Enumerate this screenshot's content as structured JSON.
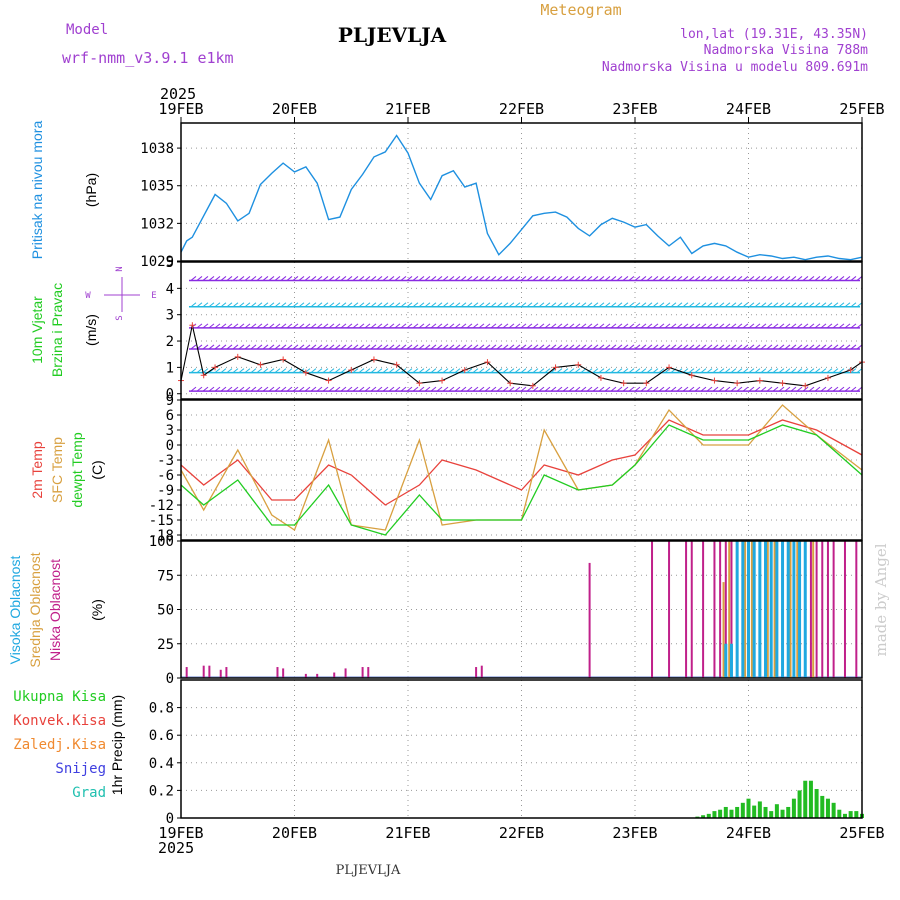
{
  "header": {
    "model_label": "Model",
    "model_name": "wrf-nmm_v3.9.1 e1km",
    "station": "PLJEVLJA",
    "title": "Meteogram",
    "coords": "lon,lat (19.31E, 43.35N)",
    "elevation": "Nadmorska Visina 788m",
    "model_elevation": "Nadmorska Visina u modelu 809.691m"
  },
  "footer": {
    "year": "2025",
    "station": "PLJEVLJA"
  },
  "watermark": "made by Angel",
  "colors": {
    "pressure": "#1e90e0",
    "temp2m": "#e8423c",
    "sfc": "#d8a040",
    "dew": "#22cc22",
    "cloud_high": "#20a8e0",
    "cloud_mid": "#d8a040",
    "cloud_low": "#c0208a",
    "precip_total": "#22bb22",
    "accent_purple": "#a040d0"
  },
  "chart_data": [
    {
      "type": "line",
      "title": "",
      "ylabel": [
        "Pritisak na nivou mora",
        "(hPa)"
      ],
      "ylim": [
        1029,
        1040
      ],
      "yticks": [
        "1038",
        "1035",
        "1032",
        "1029"
      ],
      "grid": true,
      "x_ticks": [
        "19FEB",
        "20FEB",
        "21FEB",
        "22FEB",
        "23FEB",
        "24FEB",
        "25FEB"
      ],
      "series": [
        {
          "x": [
            0,
            0.05,
            0.1,
            0.2,
            0.3,
            0.4,
            0.5,
            0.6,
            0.7,
            0.8,
            0.9,
            1.0,
            1.1,
            1.2,
            1.3,
            1.4,
            1.5,
            1.6,
            1.7,
            1.8,
            1.9,
            2.0,
            2.1,
            2.2,
            2.3,
            2.4,
            2.5,
            2.6,
            2.7,
            2.8,
            2.9,
            3.0,
            3.1,
            3.2,
            3.3,
            3.4,
            3.5,
            3.6,
            3.7,
            3.8,
            3.9,
            4.0,
            4.1,
            4.2,
            4.3,
            4.4,
            4.5,
            4.6,
            4.7,
            4.8,
            4.9,
            5.0,
            5.1,
            5.2,
            5.3,
            5.4,
            5.5,
            5.6,
            5.7,
            5.8,
            5.9,
            6.0
          ],
          "values": [
            1029.7,
            1030.6,
            1030.9,
            1032.6,
            1034.3,
            1033.6,
            1032.2,
            1032.8,
            1035.1,
            1036.0,
            1036.8,
            1036.1,
            1036.5,
            1035.2,
            1032.3,
            1032.5,
            1034.7,
            1035.9,
            1037.3,
            1037.7,
            1039.0,
            1037.6,
            1035.2,
            1033.9,
            1035.8,
            1036.2,
            1034.9,
            1035.2,
            1031.2,
            1029.5,
            1030.4,
            1031.5,
            1032.6,
            1032.8,
            1032.9,
            1032.5,
            1031.6,
            1031.0,
            1031.9,
            1032.4,
            1032.1,
            1031.7,
            1031.9,
            1031.0,
            1030.2,
            1030.9,
            1029.6,
            1030.2,
            1030.4,
            1030.2,
            1029.7,
            1029.3,
            1029.5,
            1029.4,
            1029.2,
            1029.3,
            1029.1,
            1029.3,
            1029.4,
            1029.2,
            1029.1,
            1029.3
          ]
        }
      ]
    },
    {
      "type": "line",
      "title": "",
      "ylabel": [
        "10m Vjetar",
        "Brzina i Pravac",
        "(m/s)"
      ],
      "ylim": [
        -0.2,
        5
      ],
      "yticks": [
        "5",
        "4",
        "3",
        "2",
        "1",
        "0"
      ],
      "compass": [
        "N",
        "W",
        "E",
        "S"
      ],
      "grid": true,
      "series": [
        {
          "x": [
            0,
            0.1,
            0.2,
            0.3,
            0.5,
            0.7,
            0.9,
            1.1,
            1.3,
            1.5,
            1.7,
            1.9,
            2.1,
            2.3,
            2.5,
            2.7,
            2.9,
            3.1,
            3.3,
            3.5,
            3.7,
            3.9,
            4.1,
            4.3,
            4.5,
            4.7,
            4.9,
            5.1,
            5.3,
            5.5,
            5.7,
            5.9,
            6.0
          ],
          "values": [
            0.5,
            2.6,
            0.7,
            1.0,
            1.4,
            1.1,
            1.3,
            0.8,
            0.5,
            0.9,
            1.3,
            1.1,
            0.4,
            0.5,
            0.9,
            1.2,
            0.4,
            0.3,
            1.0,
            1.1,
            0.6,
            0.4,
            0.4,
            1.0,
            0.7,
            0.5,
            0.4,
            0.5,
            0.4,
            0.3,
            0.6,
            0.9,
            1.2
          ]
        }
      ]
    },
    {
      "type": "line",
      "title": "",
      "ylabel": [
        "2m Temp",
        "SFC Temp",
        "dewpt Temp",
        "(C)"
      ],
      "ylim": [
        -19,
        9
      ],
      "yticks": [
        "9",
        "6",
        "3",
        "0",
        "-3",
        "-6",
        "-9",
        "-12",
        "-15",
        "-18"
      ],
      "grid": true,
      "series": [
        {
          "name": "2m Temp",
          "x": [
            0,
            0.2,
            0.5,
            0.8,
            1.0,
            1.3,
            1.5,
            1.8,
            2.1,
            2.3,
            2.6,
            3.0,
            3.2,
            3.5,
            3.8,
            4.0,
            4.3,
            4.6,
            5.0,
            5.3,
            5.6,
            6.0
          ],
          "values": [
            -4,
            -8,
            -3,
            -11,
            -11,
            -4,
            -6,
            -12,
            -8,
            -3,
            -5,
            -9,
            -4,
            -6,
            -3,
            -2,
            5,
            2,
            2,
            5,
            3,
            -2
          ]
        },
        {
          "name": "SFC Temp",
          "x": [
            0,
            0.2,
            0.5,
            0.8,
            1.0,
            1.3,
            1.5,
            1.8,
            2.1,
            2.3,
            2.6,
            3.0,
            3.2,
            3.5,
            3.8,
            4.0,
            4.3,
            4.6,
            5.0,
            5.3,
            5.6,
            6.0
          ],
          "values": [
            -5,
            -13,
            -1,
            -14,
            -17,
            1,
            -16,
            -17,
            1,
            -16,
            -15,
            -15,
            3,
            -9,
            -8,
            -4,
            7,
            0,
            0,
            8,
            2,
            -5
          ]
        },
        {
          "name": "dewpt Temp",
          "x": [
            0,
            0.2,
            0.5,
            0.8,
            1.0,
            1.3,
            1.5,
            1.8,
            2.1,
            2.3,
            2.6,
            3.0,
            3.2,
            3.5,
            3.8,
            4.0,
            4.3,
            4.6,
            5.0,
            5.3,
            5.6,
            6.0
          ],
          "values": [
            -8,
            -12,
            -7,
            -16,
            -16,
            -8,
            -16,
            -18,
            -10,
            -15,
            -15,
            -15,
            -6,
            -9,
            -8,
            -4,
            4,
            1,
            1,
            4,
            2,
            -6
          ]
        }
      ]
    },
    {
      "type": "bar",
      "title": "",
      "ylabel": [
        "Visoka Oblacnost",
        "Srednja Oblacnost",
        "Niska Oblacnost",
        "(%)"
      ],
      "ylim": [
        0,
        100
      ],
      "yticks": [
        "100",
        "75",
        "50",
        "25",
        "0"
      ],
      "grid": true,
      "series": [
        {
          "name": "Niska Oblacnost",
          "x": [
            0.05,
            0.2,
            0.25,
            0.35,
            0.4,
            0.85,
            0.9,
            1.1,
            1.2,
            1.35,
            1.45,
            1.6,
            1.65,
            2.6,
            2.65,
            3.6,
            4.15,
            4.3,
            4.45,
            4.5,
            4.6,
            4.7,
            4.75,
            4.8,
            4.85,
            4.9,
            4.95,
            5.0,
            5.05,
            5.1,
            5.15,
            5.2,
            5.25,
            5.3,
            5.35,
            5.4,
            5.45,
            5.5,
            5.55,
            5.6,
            5.65,
            5.7,
            5.75,
            5.85,
            5.95
          ],
          "values": [
            8,
            9,
            9,
            6,
            8,
            8,
            7,
            3,
            3,
            4,
            7,
            8,
            8,
            8,
            9,
            84,
            100,
            100,
            100,
            100,
            100,
            100,
            100,
            100,
            100,
            100,
            100,
            100,
            100,
            100,
            100,
            100,
            100,
            100,
            100,
            100,
            100,
            100,
            100,
            100,
            100,
            100,
            100,
            100,
            100
          ]
        },
        {
          "name": "Srednja Oblacnost",
          "x": [
            4.78,
            4.83,
            4.9,
            4.97,
            5.03,
            5.1,
            5.17,
            5.23,
            5.3,
            5.37,
            5.43,
            5.5,
            5.57
          ],
          "values": [
            70,
            100,
            100,
            100,
            100,
            100,
            100,
            100,
            100,
            100,
            100,
            100,
            100
          ]
        },
        {
          "name": "Visoka Oblacnost",
          "x": [
            4.8,
            4.85,
            4.9,
            4.95,
            5.0,
            5.05,
            5.1,
            5.15,
            5.2,
            5.25,
            5.3,
            5.35,
            5.4,
            5.45,
            5.5
          ],
          "values": [
            25,
            25,
            100,
            100,
            100,
            100,
            100,
            100,
            100,
            100,
            100,
            100,
            100,
            100,
            100
          ]
        }
      ]
    },
    {
      "type": "bar",
      "title": "",
      "ylabel": [
        "1hr Precip (mm)"
      ],
      "legend": [
        "Ukupna Kisa",
        "Konvek.Kisa",
        "Zaledj.Kisa",
        "Snijeg",
        "Grad"
      ],
      "ylim": [
        0,
        1.0
      ],
      "yticks": [
        "0.8",
        "0.6",
        "0.4",
        "0.2",
        "0"
      ],
      "grid": true,
      "x_ticks": [
        "19FEB",
        "20FEB",
        "21FEB",
        "22FEB",
        "23FEB",
        "24FEB",
        "25FEB"
      ],
      "series": [
        {
          "name": "Ukupna Kisa",
          "x": [
            4.55,
            4.6,
            4.65,
            4.7,
            4.75,
            4.8,
            4.85,
            4.9,
            4.95,
            5.0,
            5.05,
            5.1,
            5.15,
            5.2,
            5.25,
            5.3,
            5.35,
            5.4,
            5.45,
            5.5,
            5.55,
            5.6,
            5.65,
            5.7,
            5.75,
            5.8,
            5.85,
            5.9,
            5.95,
            6.0
          ],
          "values": [
            0.01,
            0.02,
            0.03,
            0.05,
            0.06,
            0.08,
            0.06,
            0.08,
            0.11,
            0.14,
            0.09,
            0.12,
            0.08,
            0.05,
            0.1,
            0.06,
            0.08,
            0.14,
            0.2,
            0.27,
            0.27,
            0.21,
            0.16,
            0.14,
            0.11,
            0.06,
            0.03,
            0.05,
            0.05,
            0.03
          ]
        }
      ]
    }
  ]
}
